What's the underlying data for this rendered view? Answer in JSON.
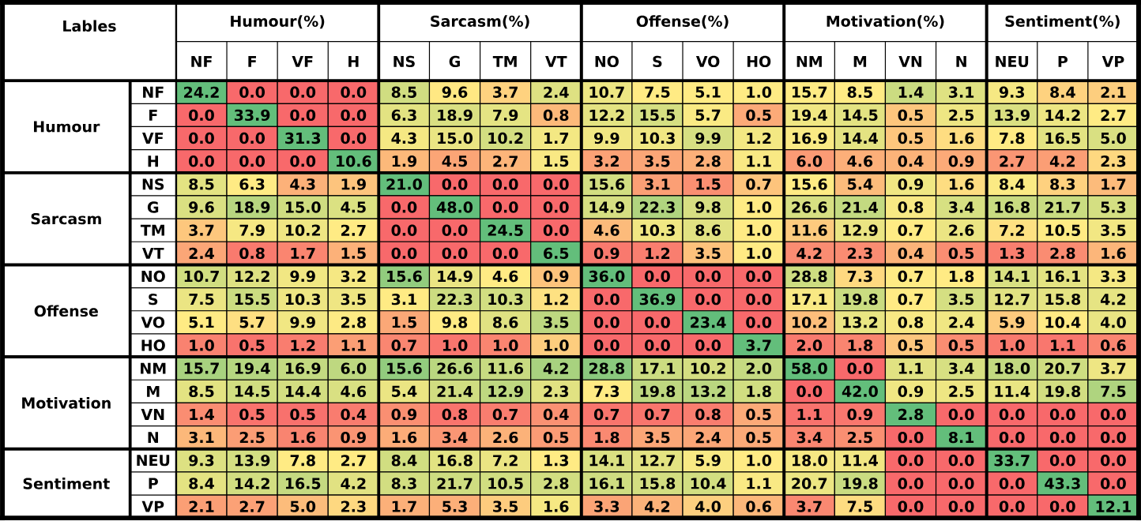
{
  "chart_data": {
    "type": "heatmap",
    "cell_labels": [
      [
        "24.2",
        "0.0",
        "0.0",
        "0.0",
        "8.5",
        "9.6",
        "3.7",
        "2.4",
        "10.7",
        "7.5",
        "5.1",
        "1.0",
        "15.7",
        "8.5",
        "1.4",
        "3.1",
        "9.3",
        "8.4",
        "2.1"
      ],
      [
        "0.0",
        "33.9",
        "0.0",
        "0.0",
        "6.3",
        "18.9",
        "7.9",
        "0.8",
        "12.2",
        "15.5",
        "5.7",
        "0.5",
        "19.4",
        "14.5",
        "0.5",
        "2.5",
        "13.9",
        "14.2",
        "2.7"
      ],
      [
        "0.0",
        "0.0",
        "31.3",
        "0.0",
        "4.3",
        "15.0",
        "10.2",
        "1.7",
        "9.9",
        "10.3",
        "9.9",
        "1.2",
        "16.9",
        "14.4",
        "0.5",
        "1.6",
        "7.8",
        "16.5",
        "5.0"
      ],
      [
        "0.0",
        "0.0",
        "0.0",
        "10.6",
        "1.9",
        "4.5",
        "2.7",
        "1.5",
        "3.2",
        "3.5",
        "2.8",
        "1.1",
        "6.0",
        "4.6",
        "0.4",
        "0.9",
        "2.7",
        "4.2",
        "2.3"
      ],
      [
        "8.5",
        "6.3",
        "4.3",
        "1.9",
        "21.0",
        "0.0",
        "0.0",
        "0.0",
        "15.6",
        "3.1",
        "1.5",
        "0.7",
        "15.6",
        "5.4",
        "0.9",
        "1.6",
        "8.4",
        "8.3",
        "1.7"
      ],
      [
        "9.6",
        "18.9",
        "15.0",
        "4.5",
        "0.0",
        "48.0",
        "0.0",
        "0.0",
        "14.9",
        "22.3",
        "9.8",
        "1.0",
        "26.6",
        "21.4",
        "0.8",
        "3.4",
        "16.8",
        "21.7",
        "5.3"
      ],
      [
        "3.7",
        "7.9",
        "10.2",
        "2.7",
        "0.0",
        "0.0",
        "24.5",
        "0.0",
        "4.6",
        "10.3",
        "8.6",
        "1.0",
        "11.6",
        "12.9",
        "0.7",
        "2.6",
        "7.2",
        "10.5",
        "3.5"
      ],
      [
        "2.4",
        "0.8",
        "1.7",
        "1.5",
        "0.0",
        "0.0",
        "0.0",
        "6.5",
        "0.9",
        "1.2",
        "3.5",
        "1.0",
        "4.2",
        "2.3",
        "0.4",
        "0.5",
        "1.3",
        "2.8",
        "1.6"
      ],
      [
        "10.7",
        "12.2",
        "9.9",
        "3.2",
        "15.6",
        "14.9",
        "4.6",
        "0.9",
        "36.0",
        "0.0",
        "0.0",
        "0.0",
        "28.8",
        "7.3",
        "0.7",
        "1.8",
        "14.1",
        "16.1",
        "3.3"
      ],
      [
        "7.5",
        "15.5",
        "10.3",
        "3.5",
        "3.1",
        "22.3",
        "10.3",
        "1.2",
        "0.0",
        "36.9",
        "0.0",
        "0.0",
        "17.1",
        "19.8",
        "0.7",
        "3.5",
        "12.7",
        "15.8",
        "4.2"
      ],
      [
        "5.1",
        "5.7",
        "9.9",
        "2.8",
        "1.5",
        "9.8",
        "8.6",
        "3.5",
        "0.0",
        "0.0",
        "23.4",
        "0.0",
        "10.2",
        "13.2",
        "0.8",
        "2.4",
        "5.9",
        "10.4",
        "4.0"
      ],
      [
        "1.0",
        "0.5",
        "1.2",
        "1.1",
        "0.7",
        "1.0",
        "1.0",
        "1.0",
        "0.0",
        "0.0",
        "0.0",
        "3.7",
        "2.0",
        "1.8",
        "0.5",
        "0.5",
        "1.0",
        "1.1",
        "0.6"
      ],
      [
        "15.7",
        "19.4",
        "16.9",
        "6.0",
        "15.6",
        "26.6",
        "11.6",
        "4.2",
        "28.8",
        "17.1",
        "10.2",
        "2.0",
        "58.0",
        "0.0",
        "1.1",
        "3.4",
        "18.0",
        "20.7",
        "3.7"
      ],
      [
        "8.5",
        "14.5",
        "14.4",
        "4.6",
        "5.4",
        "21.4",
        "12.9",
        "2.3",
        "7.3",
        "19.8",
        "13.2",
        "1.8",
        "0.0",
        "42.0",
        "0.9",
        "2.5",
        "11.4",
        "19.8",
        "7.5"
      ],
      [
        "1.4",
        "0.5",
        "0.5",
        "0.4",
        "0.9",
        "0.8",
        "0.7",
        "0.4",
        "0.7",
        "0.7",
        "0.8",
        "0.5",
        "1.1",
        "0.9",
        "2.8",
        "0.0",
        "0.0",
        "0.0",
        "0.0"
      ],
      [
        "3.1",
        "2.5",
        "1.6",
        "0.9",
        "1.6",
        "3.4",
        "2.6",
        "0.5",
        "1.8",
        "3.5",
        "2.4",
        "0.5",
        "3.4",
        "2.5",
        "0.0",
        "8.1",
        "0.0",
        "0.0",
        "0.0"
      ],
      [
        "9.3",
        "13.9",
        "7.8",
        "2.7",
        "8.4",
        "16.8",
        "7.2",
        "1.3",
        "14.1",
        "12.7",
        "5.9",
        "1.0",
        "18.0",
        "11.4",
        "0.0",
        "0.0",
        "33.7",
        "0.0",
        "0.0"
      ],
      [
        "8.4",
        "14.2",
        "16.5",
        "4.2",
        "8.3",
        "21.7",
        "10.5",
        "2.8",
        "16.1",
        "15.8",
        "10.4",
        "1.1",
        "20.7",
        "19.8",
        "0.0",
        "0.0",
        "0.0",
        "43.3",
        "0.0"
      ],
      [
        "2.1",
        "2.7",
        "5.0",
        "2.3",
        "1.7",
        "5.3",
        "3.5",
        "1.6",
        "3.3",
        "4.2",
        "4.0",
        "0.6",
        "3.7",
        "7.5",
        "0.0",
        "0.0",
        "0.0",
        "0.0",
        "12.1"
      ]
    ],
    "categories": [
      "NF",
      "F",
      "VF",
      "H",
      "NS",
      "G",
      "TM",
      "VT",
      "NO",
      "S",
      "VO",
      "HO",
      "NM",
      "M",
      "VN",
      "N",
      "NEU",
      "P",
      "VP"
    ],
    "y_categories": [
      "NF",
      "F",
      "VF",
      "H",
      "NS",
      "G",
      "TM",
      "VT",
      "NO",
      "S",
      "VO",
      "HO",
      "NM",
      "M",
      "VN",
      "N",
      "NEU",
      "P",
      "VP"
    ],
    "annotations": [
      "Lables",
      "Humour(%)",
      "Sarcasm(%)",
      "Offense(%)",
      "Motivation(%)",
      "Sentiment(%)",
      "Humour",
      "Sarcasm",
      "Offense",
      "Motivation",
      "Sentiment"
    ],
    "cells": [
      [
        24.2,
        0.0,
        0.0,
        0.0,
        8.5,
        9.6,
        3.7,
        2.4,
        10.7,
        7.5,
        5.1,
        1.0,
        15.7,
        8.5,
        1.4,
        3.1,
        9.3,
        8.4,
        2.1
      ],
      [
        0.0,
        33.9,
        0.0,
        0.0,
        6.3,
        18.9,
        7.9,
        0.8,
        12.2,
        15.5,
        5.7,
        0.5,
        19.4,
        14.5,
        0.5,
        2.5,
        13.9,
        14.2,
        2.7
      ],
      [
        0.0,
        0.0,
        31.3,
        0.0,
        4.3,
        15.0,
        10.2,
        1.7,
        9.9,
        10.3,
        9.9,
        1.2,
        16.9,
        14.4,
        0.5,
        1.6,
        7.8,
        16.5,
        5.0
      ],
      [
        0.0,
        0.0,
        0.0,
        10.6,
        1.9,
        4.5,
        2.7,
        1.5,
        3.2,
        3.5,
        2.8,
        1.1,
        6.0,
        4.6,
        0.4,
        0.9,
        2.7,
        4.2,
        2.3
      ],
      [
        8.5,
        6.3,
        4.3,
        1.9,
        21.0,
        0.0,
        0.0,
        0.0,
        15.6,
        3.1,
        1.5,
        0.7,
        15.6,
        5.4,
        0.9,
        1.6,
        8.4,
        8.3,
        1.7
      ],
      [
        9.6,
        18.9,
        15.0,
        4.5,
        0.0,
        48.0,
        0.0,
        0.0,
        14.9,
        22.3,
        9.8,
        1.0,
        26.6,
        21.4,
        0.8,
        3.4,
        16.8,
        21.7,
        5.3
      ],
      [
        3.7,
        7.9,
        10.2,
        2.7,
        0.0,
        0.0,
        24.5,
        0.0,
        4.6,
        10.3,
        8.6,
        1.0,
        11.6,
        12.9,
        0.7,
        2.6,
        7.2,
        10.5,
        3.5
      ],
      [
        2.4,
        0.8,
        1.7,
        1.5,
        0.0,
        0.0,
        0.0,
        6.5,
        0.9,
        1.2,
        3.5,
        1.0,
        4.2,
        2.3,
        0.4,
        0.5,
        1.3,
        2.8,
        1.6
      ],
      [
        10.7,
        12.2,
        9.9,
        3.2,
        15.6,
        14.9,
        4.6,
        0.9,
        36.0,
        0.0,
        0.0,
        0.0,
        28.8,
        7.3,
        0.7,
        1.8,
        14.1,
        16.1,
        3.3
      ],
      [
        7.5,
        15.5,
        10.3,
        3.5,
        3.1,
        22.3,
        10.3,
        1.2,
        0.0,
        36.9,
        0.0,
        0.0,
        17.1,
        19.8,
        0.7,
        3.5,
        12.7,
        15.8,
        4.2
      ],
      [
        5.1,
        5.7,
        9.9,
        2.8,
        1.5,
        9.8,
        8.6,
        3.5,
        0.0,
        0.0,
        23.4,
        0.0,
        10.2,
        13.2,
        0.8,
        2.4,
        5.9,
        10.4,
        4.0
      ],
      [
        1.0,
        0.5,
        1.2,
        1.1,
        0.7,
        1.0,
        1.0,
        1.0,
        0.0,
        0.0,
        0.0,
        3.7,
        2.0,
        1.8,
        0.5,
        0.5,
        1.0,
        1.1,
        0.6
      ],
      [
        15.7,
        19.4,
        16.9,
        6.0,
        15.6,
        26.6,
        11.6,
        4.2,
        28.8,
        17.1,
        10.2,
        2.0,
        58.0,
        0.0,
        1.1,
        3.4,
        18.0,
        20.7,
        3.7
      ],
      [
        8.5,
        14.5,
        14.4,
        4.6,
        5.4,
        21.4,
        12.9,
        2.3,
        7.3,
        19.8,
        13.2,
        1.8,
        0.0,
        42.0,
        0.9,
        2.5,
        11.4,
        19.8,
        7.5
      ],
      [
        1.4,
        0.5,
        0.5,
        0.4,
        0.9,
        0.8,
        0.7,
        0.4,
        0.7,
        0.7,
        0.8,
        0.5,
        1.1,
        0.9,
        2.8,
        0.0,
        0.0,
        0.0,
        0.0
      ],
      [
        3.1,
        2.5,
        1.6,
        0.9,
        1.6,
        3.4,
        2.6,
        0.5,
        1.8,
        3.5,
        2.4,
        0.5,
        3.4,
        2.5,
        0.0,
        8.1,
        0.0,
        0.0,
        0.0
      ],
      [
        9.3,
        13.9,
        7.8,
        2.7,
        8.4,
        16.8,
        7.2,
        1.3,
        14.1,
        12.7,
        5.9,
        1.0,
        18.0,
        11.4,
        0.0,
        0.0,
        33.7,
        0.0,
        0.0
      ],
      [
        8.4,
        14.2,
        16.5,
        4.2,
        8.3,
        21.7,
        10.5,
        2.8,
        16.1,
        15.8,
        10.4,
        1.1,
        20.7,
        19.8,
        0.0,
        0.0,
        0.0,
        43.3,
        0.0
      ],
      [
        2.1,
        2.7,
        5.0,
        2.3,
        1.7,
        5.3,
        3.5,
        1.6,
        3.3,
        4.2,
        4.0,
        0.6,
        3.7,
        7.5,
        0.0,
        0.0,
        0.0,
        0.0,
        12.1
      ]
    ]
  }
}
